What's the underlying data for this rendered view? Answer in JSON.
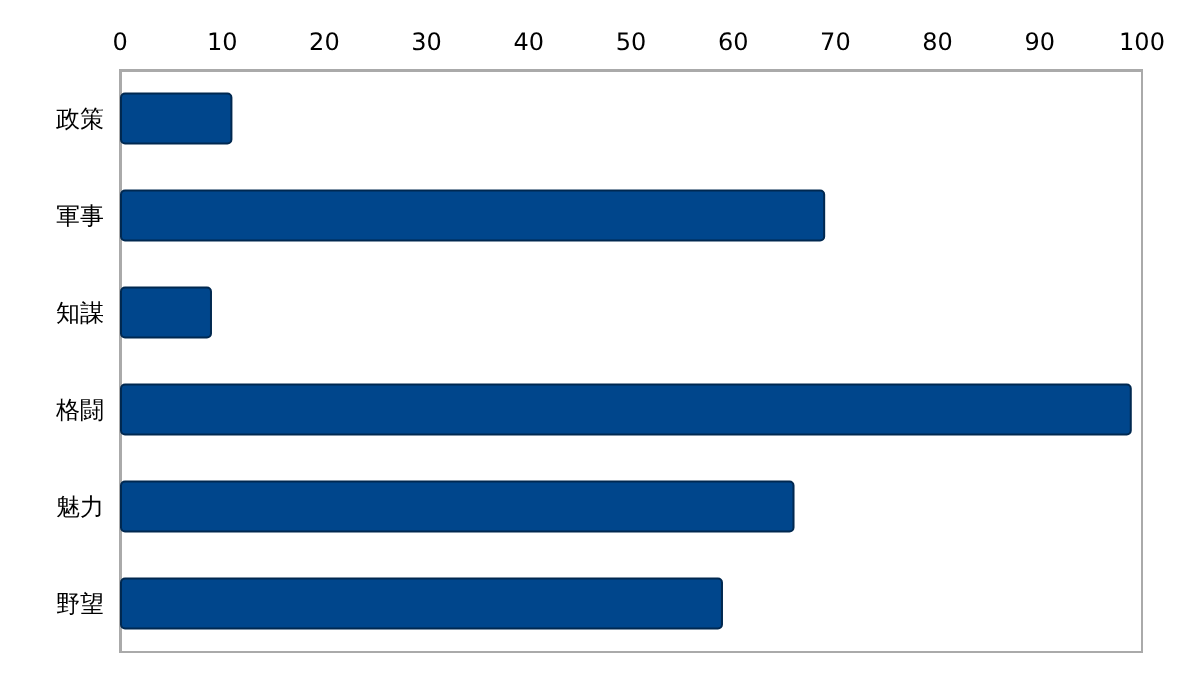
{
  "chart_data": {
    "type": "bar",
    "orientation": "horizontal",
    "categories": [
      "政策",
      "軍事",
      "知謀",
      "格闘",
      "魅力",
      "野望"
    ],
    "values": [
      11,
      69,
      9,
      99,
      66,
      59
    ],
    "color": "#00468c",
    "xlim": [
      0,
      100
    ],
    "xticks": [
      0,
      10,
      20,
      30,
      40,
      50,
      60,
      70,
      80,
      90,
      100
    ],
    "grid": false
  }
}
